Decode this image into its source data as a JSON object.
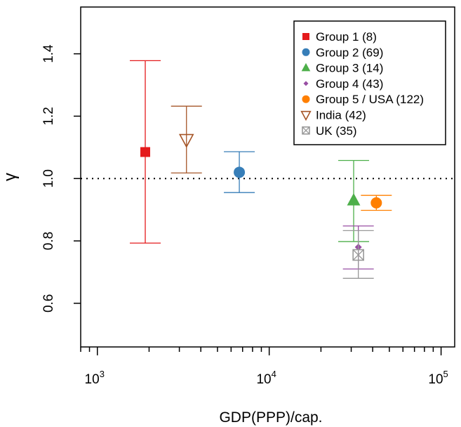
{
  "chart_data": {
    "type": "scatter",
    "xlabel": "GDP(PPP)/cap.",
    "ylabel": "γ",
    "x_scale": "log",
    "xlim": [
      800,
      120000
    ],
    "ylim": [
      0.46,
      1.55
    ],
    "x_ticks": [
      {
        "value": 1000,
        "base": "10",
        "exp": "3"
      },
      {
        "value": 10000,
        "base": "10",
        "exp": "4"
      },
      {
        "value": 100000,
        "base": "10",
        "exp": "5"
      }
    ],
    "y_ticks": [
      {
        "value": 0.6,
        "label": "0.6"
      },
      {
        "value": 0.8,
        "label": "0.8"
      },
      {
        "value": 1.0,
        "label": "1.0"
      },
      {
        "value": 1.2,
        "label": "1.2"
      },
      {
        "value": 1.4,
        "label": "1.4"
      }
    ],
    "reference_line": {
      "y": 1.0,
      "style": "dotted"
    },
    "grid": false,
    "legend_position": "top-right",
    "series": [
      {
        "name": "Group 1  (8)",
        "marker": "square",
        "color": "#e41a1c",
        "x": 1900,
        "y": 1.085,
        "ci": [
          0.793,
          1.378
        ]
      },
      {
        "name": "Group 2  (69)",
        "marker": "circle",
        "color": "#377eb8",
        "x": 6700,
        "y": 1.02,
        "ci": [
          0.955,
          1.086
        ]
      },
      {
        "name": "Group 3  (14)",
        "marker": "triangle",
        "color": "#4daf4a",
        "x": 31000,
        "y": 0.93,
        "ci": [
          0.798,
          1.058
        ]
      },
      {
        "name": "Group 4  (43)",
        "marker": "diamond",
        "color": "#984ea3",
        "x": 33000,
        "y": 0.78,
        "ci": [
          0.71,
          0.848
        ]
      },
      {
        "name": "Group 5 / USA (122)",
        "marker": "circle",
        "color": "#ff7f00",
        "x": 42000,
        "y": 0.922,
        "ci": [
          0.898,
          0.946
        ]
      },
      {
        "name": "India (42)",
        "marker": "triangle-down-open",
        "color": "#a65628",
        "x": 3300,
        "y": 1.125,
        "ci": [
          1.018,
          1.232
        ]
      },
      {
        "name": "UK (35)",
        "marker": "square-x",
        "color": "#999999",
        "x": 33000,
        "y": 0.755,
        "ci": [
          0.68,
          0.833
        ]
      }
    ]
  }
}
